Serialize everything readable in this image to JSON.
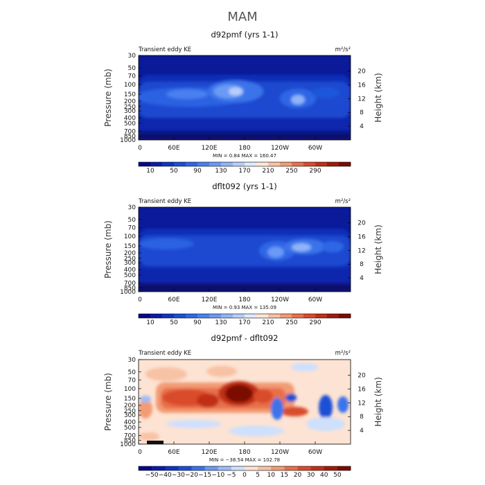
{
  "figure": {
    "title": "MAM"
  },
  "chart_data": [
    {
      "type": "heatmap",
      "title": "d92pmf (yrs 1-1)",
      "left_label": "Transient eddy KE",
      "units": "m²/s²",
      "ylabel": "Pressure (mb)",
      "ylabel_right": "Height (km)",
      "x_ticks": [
        "0",
        "60E",
        "120E",
        "180",
        "120W",
        "60W"
      ],
      "pressure_ticks": [
        "30",
        "50",
        "70",
        "100",
        "150",
        "200",
        "250",
        "300",
        "400",
        "500",
        "700",
        "850",
        "1000"
      ],
      "height_ticks": [
        "20",
        "16",
        "12",
        "8",
        "4"
      ],
      "min_max_text": "MIN =      0.84   MAX =  160.47",
      "colorbar_labels": [
        "10",
        "50",
        "90",
        "130",
        "170",
        "210",
        "250",
        "290"
      ],
      "colorbar_colors": [
        "#08088a",
        "#0b1ca6",
        "#0d35c2",
        "#1a4fd6",
        "#2f66e6",
        "#4a80f0",
        "#6a9af5",
        "#8fb4f8",
        "#b7cefb",
        "#ddeaff",
        "#fde7d9",
        "#f8c2a4",
        "#f29b74",
        "#e8704a",
        "#d94b2b",
        "#c12f17",
        "#a01a0a",
        "#7a0c03"
      ],
      "levels": [
        0,
        10,
        30,
        50,
        70,
        90,
        110,
        130,
        150,
        170,
        190,
        210,
        230,
        250,
        270,
        290,
        310,
        330,
        350
      ],
      "range": [
        0.84,
        160.47
      ],
      "field_description": "jet-level maxima near 150-200 mb at 180 and 120W"
    },
    {
      "type": "heatmap",
      "title": "dflt092 (yrs 1-1)",
      "left_label": "Transient eddy KE",
      "units": "m²/s²",
      "ylabel": "Pressure (mb)",
      "ylabel_right": "Height (km)",
      "x_ticks": [
        "0",
        "60E",
        "120E",
        "180",
        "120W",
        "60W"
      ],
      "pressure_ticks": [
        "30",
        "50",
        "70",
        "100",
        "150",
        "200",
        "250",
        "300",
        "400",
        "500",
        "700",
        "850",
        "1000"
      ],
      "height_ticks": [
        "20",
        "16",
        "12",
        "8",
        "4"
      ],
      "min_max_text": "MIN =      0.93   MAX =  135.09",
      "colorbar_labels": [
        "10",
        "50",
        "90",
        "130",
        "170",
        "210",
        "250",
        "290"
      ],
      "colorbar_colors": [
        "#08088a",
        "#0b1ca6",
        "#0d35c2",
        "#1a4fd6",
        "#2f66e6",
        "#4a80f0",
        "#6a9af5",
        "#8fb4f8",
        "#b7cefb",
        "#ddeaff",
        "#fde7d9",
        "#f8c2a4",
        "#f29b74",
        "#e8704a",
        "#d94b2b",
        "#c12f17",
        "#a01a0a",
        "#7a0c03"
      ],
      "levels": [
        0,
        10,
        30,
        50,
        70,
        90,
        110,
        130,
        150,
        170,
        190,
        210,
        230,
        250,
        270,
        290,
        310,
        330,
        350
      ],
      "range": [
        0.93,
        135.09
      ]
    },
    {
      "type": "heatmap",
      "title": "d92pmf - dflt092",
      "left_label": "Transient eddy KE",
      "units": "m²/s²",
      "ylabel": "Pressure (mb)",
      "ylabel_right": "Height (km)",
      "x_ticks": [
        "0",
        "60E",
        "120E",
        "180",
        "120W",
        "60W"
      ],
      "pressure_ticks": [
        "30",
        "50",
        "70",
        "100",
        "150",
        "200",
        "250",
        "300",
        "400",
        "500",
        "700",
        "850",
        "1000"
      ],
      "height_ticks": [
        "20",
        "16",
        "12",
        "8",
        "4"
      ],
      "min_max_text": "MIN =   −38.54   MAX =  102.78",
      "colorbar_labels": [
        "−50",
        "−40",
        "−30",
        "−20",
        "−15",
        "−10",
        "−5",
        "0",
        "5",
        "10",
        "15",
        "20",
        "30",
        "40",
        "50"
      ],
      "colorbar_colors": [
        "#08088a",
        "#0b1ca6",
        "#0d35c2",
        "#1a4fd6",
        "#3a73ea",
        "#6a9af5",
        "#9bbcf8",
        "#cfe0fd",
        "#fde3d3",
        "#f8c2a4",
        "#f29b74",
        "#e8704a",
        "#d94b2b",
        "#c12f17",
        "#a01a0a",
        "#7a0c03"
      ],
      "levels": [
        -60,
        -50,
        -40,
        -30,
        -20,
        -15,
        -10,
        -5,
        0,
        5,
        10,
        15,
        20,
        30,
        40,
        50,
        60
      ],
      "range": [
        -38.54,
        102.78
      ]
    }
  ]
}
